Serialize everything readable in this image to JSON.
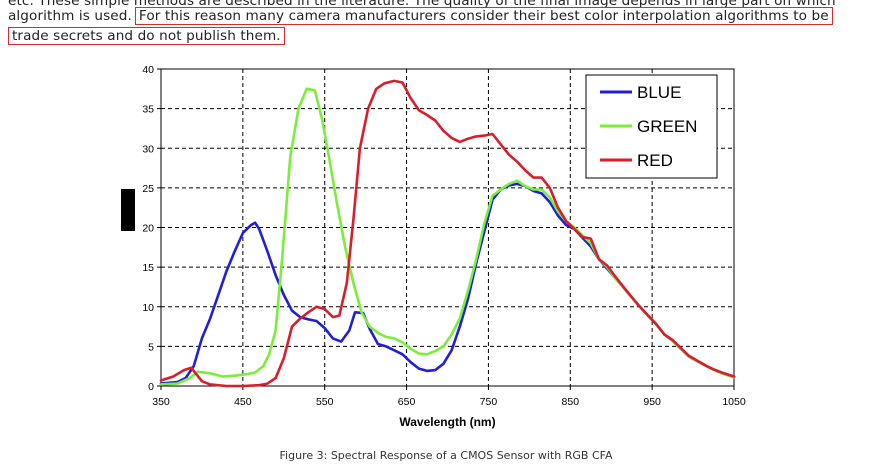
{
  "document": {
    "text_lines": [
      "etc. These simple methods are described in the literature. The quality of the final image depends in large part on which",
      "algorithm is used.",
      "For this reason many camera manufacturers consider their best color interpolation algorithms to be",
      "trade secrets and do not publish them."
    ],
    "highlight_color": "#d62c2c",
    "caption": "Figure 3: Spectral Response of a CMOS Sensor with RGB CFA"
  },
  "chart_data": {
    "type": "line",
    "title": "",
    "xlabel": "Wavelength (nm)",
    "ylabel": "",
    "xlim": [
      350,
      1050
    ],
    "ylim": [
      0,
      40
    ],
    "x_ticks": [
      350,
      450,
      550,
      650,
      750,
      850,
      950,
      1050
    ],
    "y_ticks": [
      0,
      5,
      10,
      15,
      20,
      25,
      30,
      35,
      40
    ],
    "grid": "dashed",
    "legend_position": "top-right",
    "series": [
      {
        "name": "BLUE",
        "color": "#1f1fd6",
        "points": [
          [
            350,
            0.3
          ],
          [
            370,
            0.5
          ],
          [
            380,
            1
          ],
          [
            390,
            2.5
          ],
          [
            400,
            6
          ],
          [
            410,
            8.5
          ],
          [
            420,
            11.5
          ],
          [
            430,
            14.5
          ],
          [
            440,
            17
          ],
          [
            450,
            19.3
          ],
          [
            460,
            20.3
          ],
          [
            465,
            20.6
          ],
          [
            470,
            19.8
          ],
          [
            480,
            17
          ],
          [
            490,
            14
          ],
          [
            500,
            11.5
          ],
          [
            510,
            9.5
          ],
          [
            520,
            8.7
          ],
          [
            530,
            8.4
          ],
          [
            540,
            8.2
          ],
          [
            550,
            7.3
          ],
          [
            560,
            6
          ],
          [
            570,
            5.6
          ],
          [
            580,
            7
          ],
          [
            587,
            9.3
          ],
          [
            597,
            9.2
          ],
          [
            605,
            7.2
          ],
          [
            615,
            5.3
          ],
          [
            625,
            5
          ],
          [
            635,
            4.5
          ],
          [
            645,
            4
          ],
          [
            655,
            3
          ],
          [
            665,
            2.2
          ],
          [
            675,
            1.9
          ],
          [
            685,
            2
          ],
          [
            695,
            2.8
          ],
          [
            705,
            4.5
          ],
          [
            715,
            7.5
          ],
          [
            725,
            11
          ],
          [
            735,
            15.5
          ],
          [
            745,
            19.5
          ],
          [
            755,
            23.5
          ],
          [
            765,
            24.8
          ],
          [
            775,
            25.3
          ],
          [
            785,
            25.5
          ],
          [
            795,
            25.2
          ],
          [
            805,
            24.6
          ],
          [
            815,
            24.3
          ],
          [
            825,
            23.2
          ],
          [
            835,
            21.5
          ],
          [
            845,
            20.3
          ],
          [
            855,
            19.8
          ],
          [
            865,
            18.7
          ],
          [
            875,
            17.6
          ],
          [
            885,
            16
          ],
          [
            895,
            14.8
          ],
          [
            905,
            13.6
          ],
          [
            915,
            12.4
          ],
          [
            925,
            11.2
          ],
          [
            935,
            10
          ],
          [
            945,
            8.9
          ],
          [
            955,
            7.8
          ],
          [
            965,
            6.5
          ],
          [
            975,
            5.7
          ],
          [
            985,
            4.7
          ],
          [
            995,
            3.7
          ],
          [
            1005,
            3.1
          ],
          [
            1015,
            2.6
          ],
          [
            1025,
            2.1
          ],
          [
            1035,
            1.6
          ],
          [
            1050,
            1.1
          ]
        ]
      },
      {
        "name": "GREEN",
        "color": "#7aee3a",
        "points": [
          [
            350,
            0.2
          ],
          [
            370,
            0.3
          ],
          [
            385,
            1
          ],
          [
            395,
            1.8
          ],
          [
            410,
            1.6
          ],
          [
            425,
            1.2
          ],
          [
            440,
            1.3
          ],
          [
            455,
            1.5
          ],
          [
            465,
            1.7
          ],
          [
            475,
            2.5
          ],
          [
            482,
            4
          ],
          [
            490,
            7
          ],
          [
            498,
            16
          ],
          [
            508,
            29
          ],
          [
            518,
            35
          ],
          [
            528,
            37.5
          ],
          [
            538,
            37.3
          ],
          [
            547,
            33.5
          ],
          [
            555,
            29
          ],
          [
            565,
            23
          ],
          [
            575,
            17.5
          ],
          [
            585,
            13
          ],
          [
            595,
            9.3
          ],
          [
            605,
            7.5
          ],
          [
            615,
            6.7
          ],
          [
            625,
            6.2
          ],
          [
            635,
            6
          ],
          [
            645,
            5.5
          ],
          [
            655,
            4.7
          ],
          [
            665,
            4.1
          ],
          [
            675,
            4
          ],
          [
            685,
            4.4
          ],
          [
            695,
            5
          ],
          [
            705,
            6.5
          ],
          [
            715,
            8.5
          ],
          [
            725,
            12
          ],
          [
            735,
            16
          ],
          [
            745,
            20.5
          ],
          [
            755,
            24
          ],
          [
            765,
            24.8
          ],
          [
            775,
            25.5
          ],
          [
            785,
            25.9
          ],
          [
            795,
            25.2
          ],
          [
            805,
            24.8
          ],
          [
            815,
            24.8
          ],
          [
            825,
            23.8
          ],
          [
            835,
            22
          ],
          [
            845,
            20.8
          ],
          [
            855,
            20
          ],
          [
            865,
            19
          ],
          [
            875,
            18
          ],
          [
            885,
            16
          ],
          [
            895,
            15
          ],
          [
            905,
            13.6
          ],
          [
            915,
            12.4
          ],
          [
            925,
            11.2
          ],
          [
            935,
            10
          ],
          [
            945,
            8.9
          ],
          [
            955,
            7.8
          ],
          [
            965,
            6.5
          ],
          [
            975,
            5.7
          ],
          [
            985,
            4.7
          ],
          [
            995,
            3.7
          ],
          [
            1005,
            3.1
          ],
          [
            1015,
            2.6
          ],
          [
            1025,
            2.1
          ],
          [
            1035,
            1.6
          ],
          [
            1050,
            1.1
          ]
        ]
      },
      {
        "name": "RED",
        "color": "#d81e2a",
        "points": [
          [
            350,
            0.7
          ],
          [
            365,
            1.2
          ],
          [
            378,
            2
          ],
          [
            387,
            2.3
          ],
          [
            393,
            1.5
          ],
          [
            400,
            0.6
          ],
          [
            410,
            0.2
          ],
          [
            430,
            0
          ],
          [
            450,
            0
          ],
          [
            470,
            0.1
          ],
          [
            480,
            0.3
          ],
          [
            490,
            1
          ],
          [
            500,
            3.5
          ],
          [
            510,
            7.5
          ],
          [
            520,
            8.5
          ],
          [
            530,
            9.3
          ],
          [
            540,
            10
          ],
          [
            550,
            9.7
          ],
          [
            560,
            8.7
          ],
          [
            568,
            8.9
          ],
          [
            577,
            13
          ],
          [
            585,
            21
          ],
          [
            593,
            30
          ],
          [
            603,
            35
          ],
          [
            613,
            37.5
          ],
          [
            623,
            38.2
          ],
          [
            635,
            38.5
          ],
          [
            645,
            38.3
          ],
          [
            655,
            36.3
          ],
          [
            665,
            34.8
          ],
          [
            675,
            34.2
          ],
          [
            685,
            33.5
          ],
          [
            695,
            32.2
          ],
          [
            705,
            31.3
          ],
          [
            715,
            30.8
          ],
          [
            725,
            31.2
          ],
          [
            735,
            31.5
          ],
          [
            745,
            31.6
          ],
          [
            755,
            31.8
          ],
          [
            765,
            30.5
          ],
          [
            775,
            29.2
          ],
          [
            785,
            28.3
          ],
          [
            795,
            27.2
          ],
          [
            805,
            26.3
          ],
          [
            815,
            26.3
          ],
          [
            825,
            25
          ],
          [
            835,
            22.5
          ],
          [
            845,
            20.8
          ],
          [
            855,
            19.8
          ],
          [
            865,
            18.8
          ],
          [
            875,
            18.6
          ],
          [
            885,
            16
          ],
          [
            895,
            15.2
          ],
          [
            905,
            13.8
          ],
          [
            915,
            12.5
          ],
          [
            925,
            11.2
          ],
          [
            935,
            10
          ],
          [
            945,
            8.9
          ],
          [
            955,
            7.8
          ],
          [
            965,
            6.5
          ],
          [
            975,
            5.8
          ],
          [
            985,
            4.8
          ],
          [
            995,
            3.8
          ],
          [
            1005,
            3.2
          ],
          [
            1015,
            2.6
          ],
          [
            1025,
            2.1
          ],
          [
            1035,
            1.7
          ],
          [
            1050,
            1.2
          ]
        ]
      }
    ]
  }
}
